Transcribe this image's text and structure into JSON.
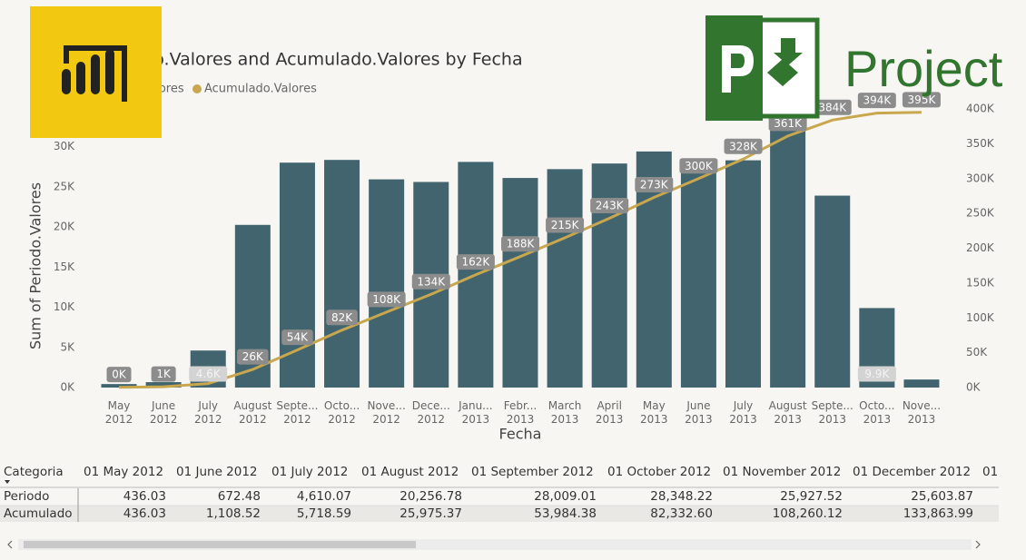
{
  "chart_data": {
    "type": "combo",
    "title": "Periodo.Valores and Acumulado.Valores by Fecha",
    "x_label": "Fecha",
    "y_label": "Sum of Periodo.Valores",
    "categories": [
      "May 2012",
      "June 2012",
      "July 2012",
      "August 2012",
      "Septe... 2012",
      "Octo... 2012",
      "Nove... 2012",
      "Dece... 2012",
      "Janu... 2013",
      "Febr... 2013",
      "March 2013",
      "April 2013",
      "May 2013",
      "June 2013",
      "July 2013",
      "August 2013",
      "Septe... 2013",
      "Octo... 2013",
      "Nove... 2013"
    ],
    "series": [
      {
        "name": "Periodo.Valores",
        "type": "bar",
        "color": "#41646e",
        "values": [
          436.03,
          672.48,
          4610.07,
          20256.78,
          28009.01,
          28348.22,
          25927.52,
          25603.87,
          28100,
          26100,
          27200,
          27900,
          29400,
          27100,
          28300,
          33000,
          23900,
          9900,
          1000
        ],
        "value_labels": [
          null,
          null,
          "4.6K",
          null,
          null,
          null,
          null,
          null,
          null,
          null,
          null,
          null,
          null,
          null,
          null,
          null,
          null,
          "9.9K",
          null
        ]
      },
      {
        "name": "Acumulado.Valores",
        "type": "line",
        "axis": "y2",
        "color": "#c8a74f",
        "values": [
          436.03,
          1108.52,
          5718.59,
          25975.37,
          53984.38,
          82332.6,
          108260.12,
          133863.99,
          162000,
          188000,
          215000,
          243000,
          273000,
          300000,
          328000,
          361000,
          384000,
          394000,
          395000
        ],
        "value_labels": [
          "0K",
          "1K",
          null,
          "26K",
          "54K",
          "82K",
          "108K",
          "134K",
          "162K",
          "188K",
          "215K",
          "243K",
          "273K",
          "300K",
          "328K",
          "361K",
          "384K",
          "394K",
          "395K"
        ]
      }
    ],
    "ylim": [
      0,
      34700
    ],
    "yticks": [
      {
        "value": 0,
        "label": "0K"
      },
      {
        "value": 5000,
        "label": "5K"
      },
      {
        "value": 10000,
        "label": "10K"
      },
      {
        "value": 15000,
        "label": "15K"
      },
      {
        "value": 20000,
        "label": "20K"
      },
      {
        "value": 25000,
        "label": "25K"
      },
      {
        "value": 30000,
        "label": "30K"
      }
    ],
    "y2lim": [
      0,
      400000
    ],
    "y2ticks": [
      {
        "value": 0,
        "label": "0K"
      },
      {
        "value": 50000,
        "label": "50K"
      },
      {
        "value": 100000,
        "label": "100K"
      },
      {
        "value": 150000,
        "label": "150K"
      },
      {
        "value": 200000,
        "label": "200K"
      },
      {
        "value": 250000,
        "label": "250K"
      },
      {
        "value": 300000,
        "label": "300K"
      },
      {
        "value": 350000,
        "label": "350K"
      },
      {
        "value": 400000,
        "label": "400K"
      }
    ],
    "grid": false
  },
  "logos": {
    "project": "Project"
  },
  "table": {
    "header": [
      "Categoria",
      "01 May 2012",
      "01 June 2012",
      "01 July 2012",
      "01 August 2012",
      "01 September 2012",
      "01 October 2012",
      "01 November 2012",
      "01 December 2012",
      "01"
    ],
    "rows": [
      [
        "Periodo",
        "436.03",
        "672.48",
        "4,610.07",
        "20,256.78",
        "28,009.01",
        "28,348.22",
        "25,927.52",
        "25,603.87"
      ],
      [
        "Acumulado",
        "436.03",
        "1,108.52",
        "5,718.59",
        "25,975.37",
        "53,984.38",
        "82,332.60",
        "108,260.12",
        "133,863.99"
      ]
    ]
  }
}
